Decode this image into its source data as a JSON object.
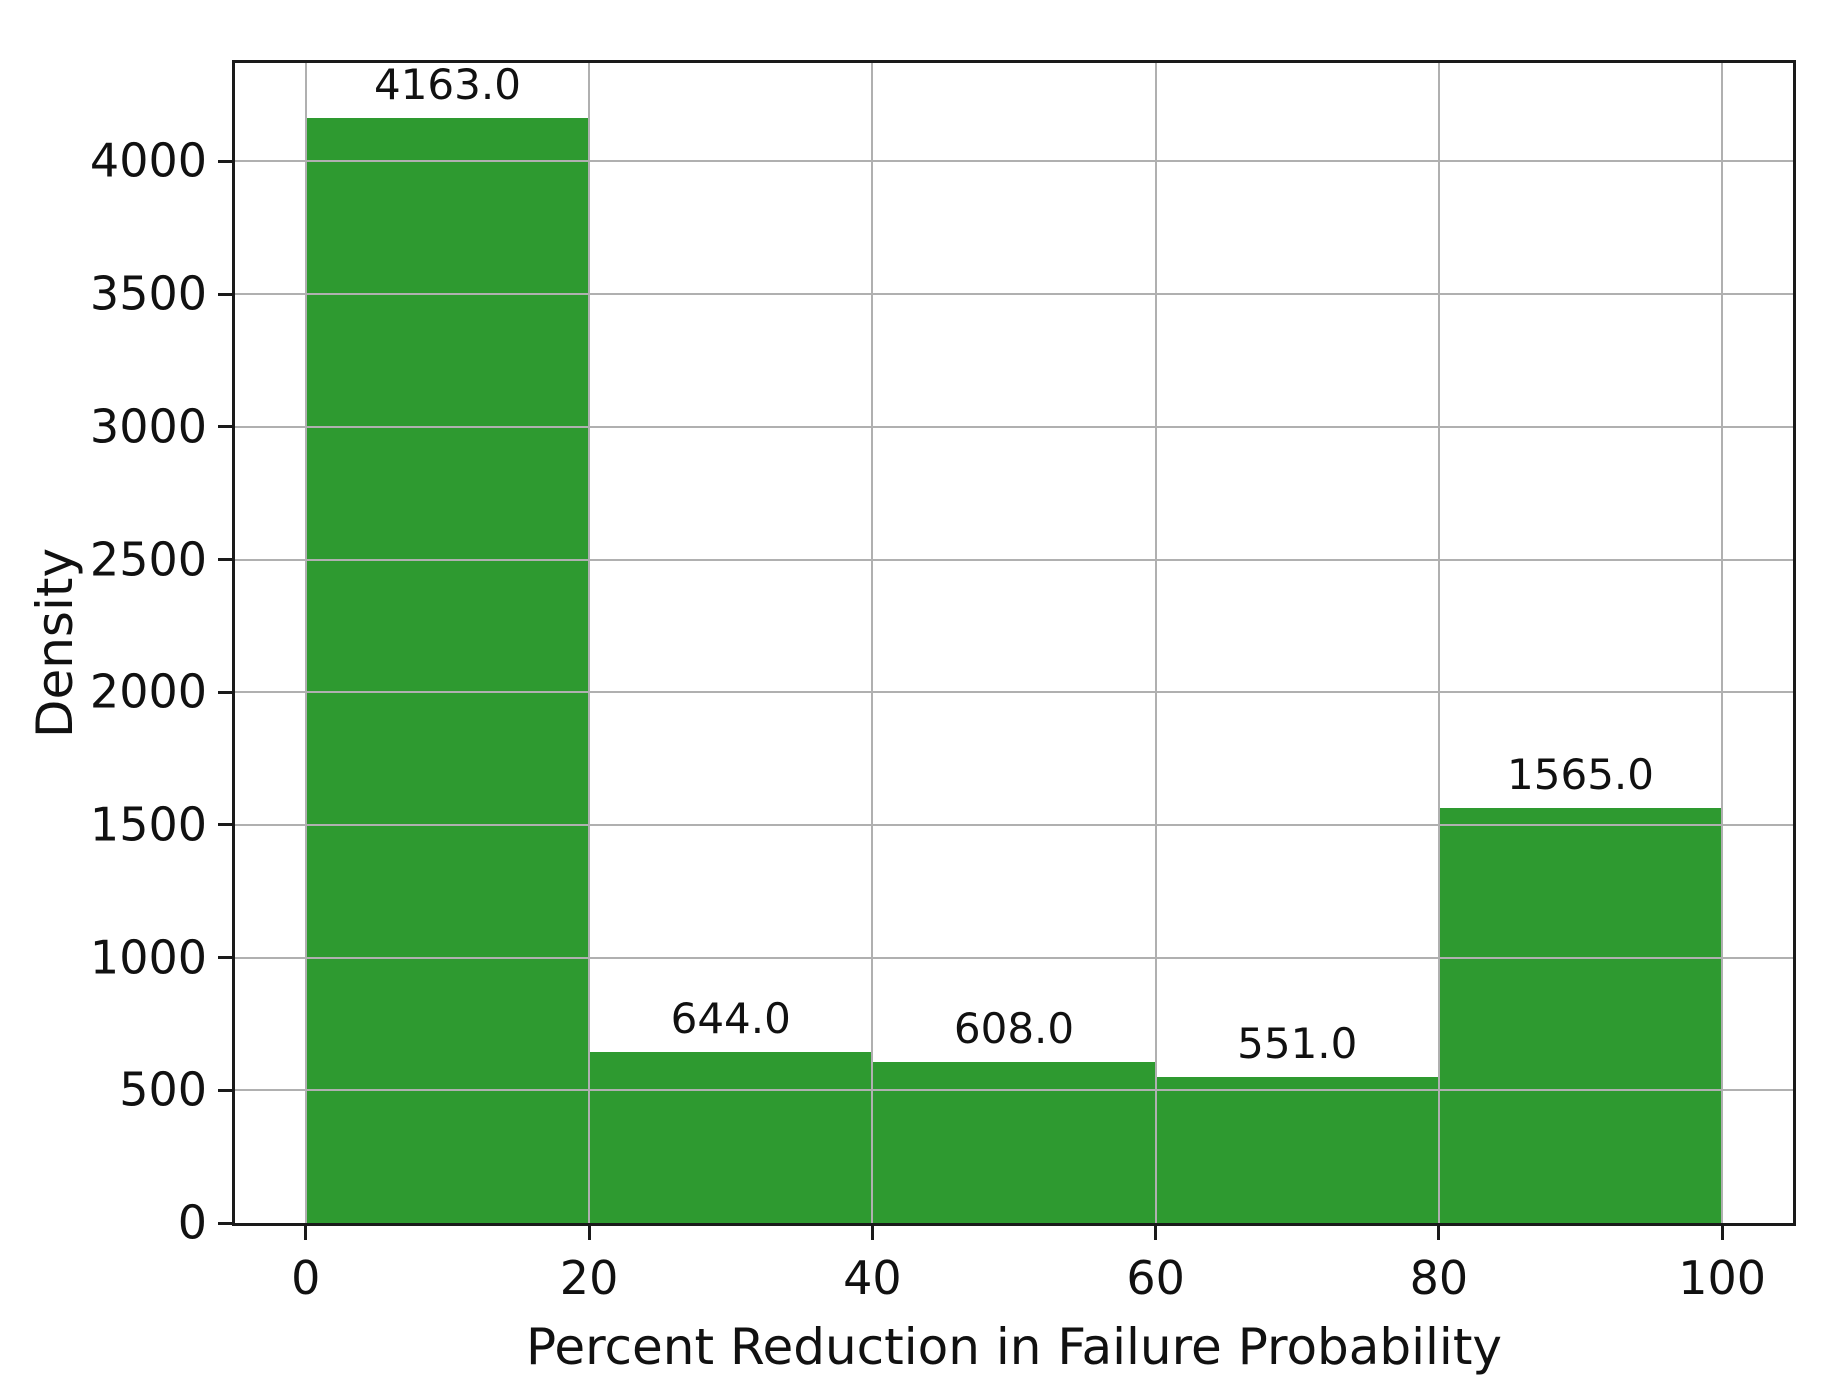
{
  "figure": {
    "background": "#ffffff"
  },
  "chart_data": {
    "type": "bar",
    "subtype": "histogram",
    "title": "",
    "xlabel": "Percent Reduction in Failure Probability",
    "ylabel": "Density",
    "bin_edges": [
      0,
      20,
      40,
      60,
      80,
      100
    ],
    "values": [
      4163,
      644,
      608,
      551,
      1565
    ],
    "bar_labels": [
      "4163.0",
      "644.0",
      "608.0",
      "551.0",
      "1565.0"
    ],
    "x_ticks": [
      0,
      20,
      40,
      60,
      80,
      100
    ],
    "y_ticks": [
      0,
      500,
      1000,
      1500,
      2000,
      2500,
      3000,
      3500,
      4000
    ],
    "xlim": [
      -5,
      105
    ],
    "ylim": [
      0,
      4371
    ],
    "grid": "on",
    "grid_over_bars": true,
    "legend_position": "none",
    "bar_color": "#2e9a30",
    "grid_color": "#b0b0b0",
    "spine_color": "#1a1a1a",
    "text_color": "#111111"
  }
}
